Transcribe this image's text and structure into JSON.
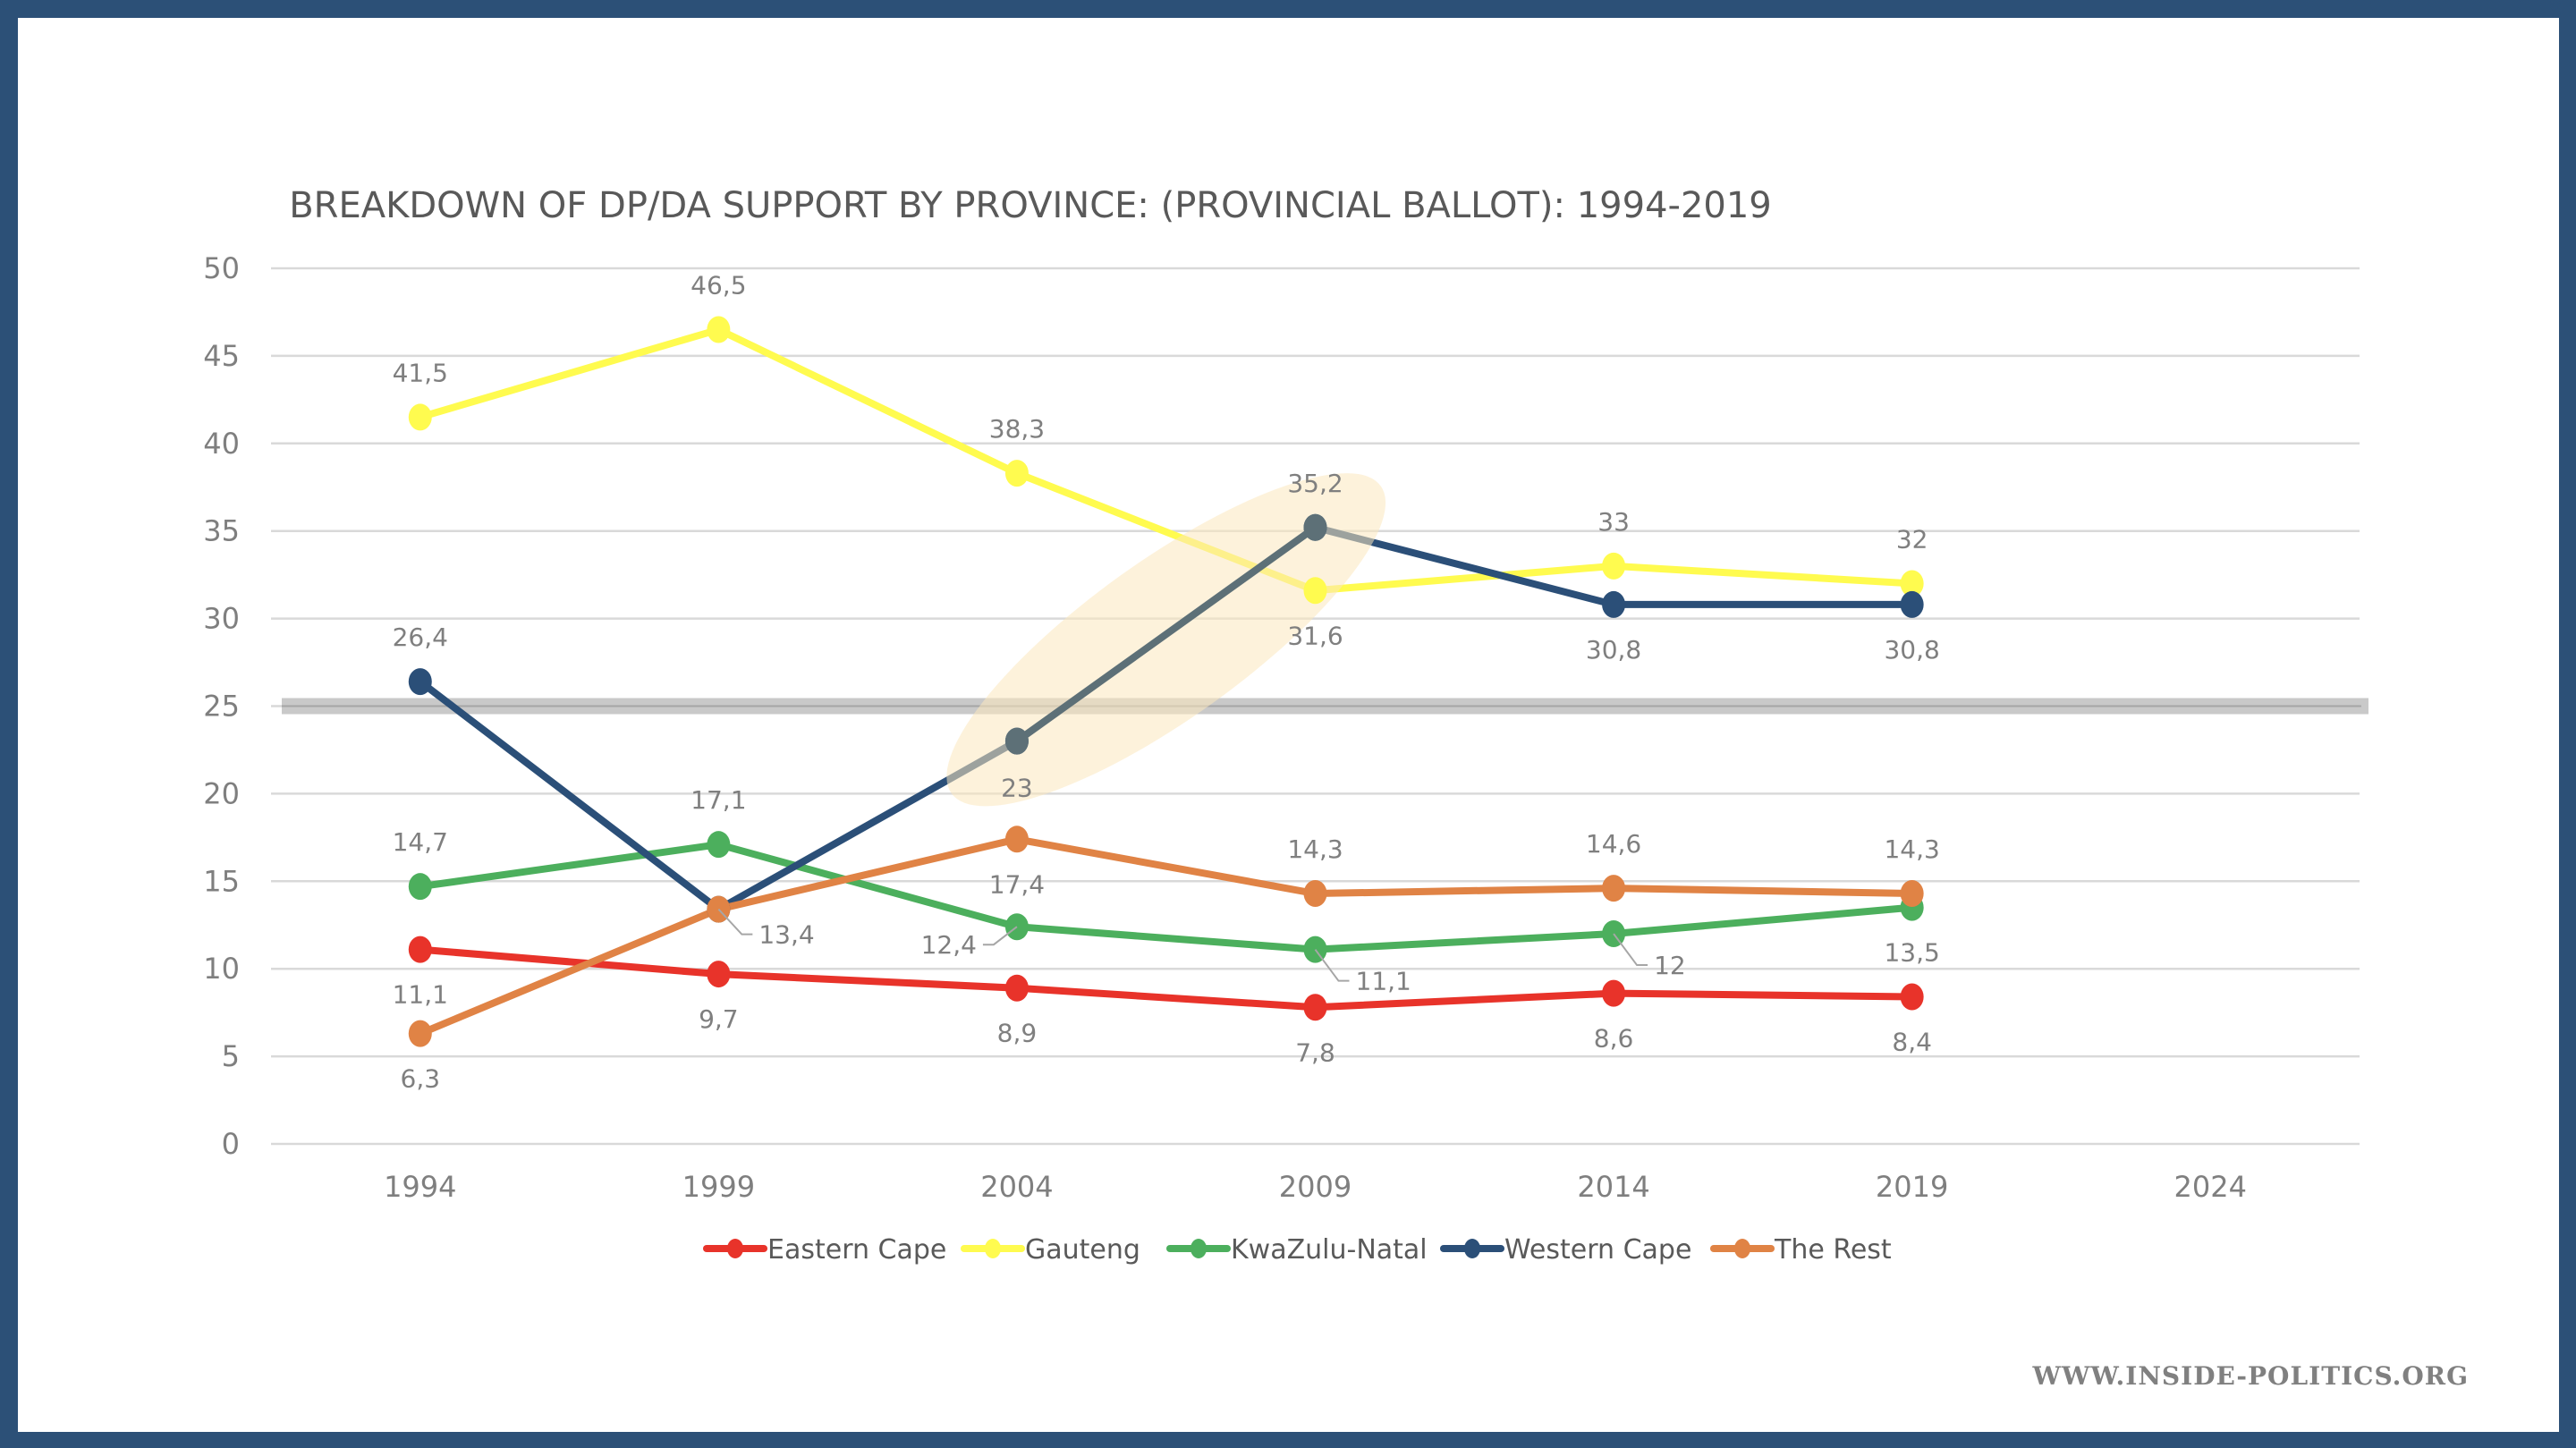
{
  "watermark": "WWW.INSIDE-POLITICS.ORG",
  "colors": {
    "frame": "#2c5077",
    "grid": "#d9d9d9",
    "text": "#7f7f7f",
    "threshold_band": "#bfbfbf",
    "highlight": "#fbe7be"
  },
  "chart_data": {
    "type": "line",
    "title": "BREAKDOWN OF DP/DA SUPPORT BY PROVINCE: (PROVINCIAL BALLOT): 1994-2019",
    "xlabel": "",
    "ylabel": "",
    "categories": [
      "1994",
      "1999",
      "2004",
      "2009",
      "2014",
      "2019",
      "2024"
    ],
    "ylim": [
      0,
      50
    ],
    "yticks": [
      "0",
      "5",
      "10",
      "15",
      "20",
      "25",
      "30",
      "35",
      "40",
      "45",
      "50"
    ],
    "grid": true,
    "legend_position": "bottom",
    "threshold_line": {
      "value": 25,
      "color": "#bfbfbf"
    },
    "highlight": {
      "description": "shaded ellipse highlighting Western Cape rise 2004-2009",
      "from_category": "2004",
      "to_category": "2009",
      "color": "#fbe7be"
    },
    "series": [
      {
        "name": "Eastern Cape",
        "color": "#e8332a",
        "values": [
          11.1,
          9.7,
          8.9,
          7.8,
          8.6,
          8.4,
          null
        ],
        "labels": [
          "11,1",
          "9,7",
          "8,9",
          "7,8",
          "8,6",
          "8,4"
        ]
      },
      {
        "name": "Gauteng",
        "color": "#fffb4f",
        "values": [
          41.5,
          46.5,
          38.3,
          31.6,
          33,
          32,
          null
        ],
        "labels": [
          "41,5",
          "46,5",
          "38,3",
          "31,6",
          "33",
          "32"
        ]
      },
      {
        "name": "KwaZulu-Natal",
        "color": "#4caf5d",
        "values": [
          14.7,
          17.1,
          12.4,
          11.1,
          12,
          13.5,
          null
        ],
        "labels": [
          "14,7",
          "17,1",
          "12,4",
          "11,1",
          "12",
          "13,5"
        ]
      },
      {
        "name": "Western Cape",
        "color": "#2b4f78",
        "values": [
          26.4,
          13.4,
          23,
          35.2,
          30.8,
          30.8,
          null
        ],
        "labels": [
          "26,4",
          "13,4",
          "23",
          "35,2",
          "30,8",
          "30,8"
        ]
      },
      {
        "name": "The Rest",
        "color": "#e08345",
        "values": [
          6.3,
          13.4,
          17.4,
          14.3,
          14.6,
          14.3,
          null
        ],
        "labels": [
          "6,3",
          "",
          "17,4",
          "14,3",
          "14,6",
          "14,3"
        ]
      }
    ]
  }
}
